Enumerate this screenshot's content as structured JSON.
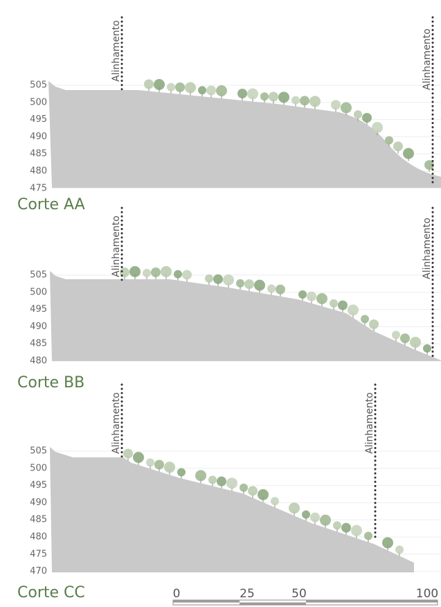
{
  "sections": [
    {
      "title": "Corte AA",
      "elevation_labels": [
        505,
        500,
        495,
        490,
        485,
        480,
        475
      ],
      "alignment_labels": [
        "Alinhamento",
        "Alinhamento"
      ]
    },
    {
      "title": "Corte BB",
      "elevation_labels": [
        505,
        500,
        495,
        490,
        485,
        480
      ],
      "alignment_labels": [
        "Alinhamento",
        "Alinhamento"
      ]
    },
    {
      "title": "Corte CC",
      "elevation_labels": [
        505,
        500,
        495,
        490,
        485,
        480,
        475,
        470
      ],
      "alignment_labels": [
        "Alinhamento",
        "Alinhamento"
      ]
    }
  ],
  "scale_bar": {
    "labels": [
      0,
      25,
      50,
      100
    ]
  }
}
